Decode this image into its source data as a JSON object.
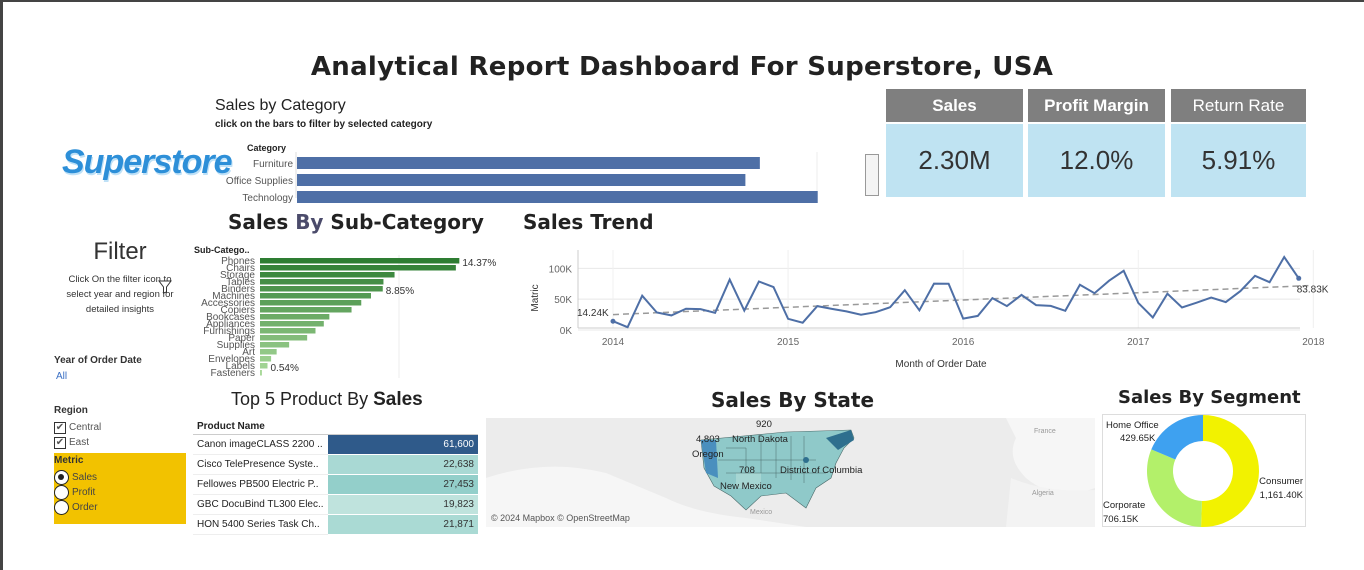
{
  "title": "Analytical Report Dashboard For Superstore, USA",
  "logo": "Superstore",
  "colors": {
    "bar_blue": "#4e6fa6",
    "kpi_head": "#7f7f7f",
    "kpi_bg": "#bfe3f2",
    "metric_bg": "#f2c200",
    "line": "#4e6fa6",
    "dark_green": "#2e7d32",
    "light_green": "#a9d99a",
    "consumer": "#f2f200",
    "corporate": "#b3f06a",
    "home_office": "#3ea1f0"
  },
  "category_panel": {
    "title": "Sales by Category",
    "subtitle": "click on the bars to filter by selected category",
    "axis_header": "Category",
    "categories": [
      "Furniture",
      "Office Supplies",
      "Technology"
    ],
    "values": [
      480,
      465,
      540
    ]
  },
  "kpis": [
    {
      "label": "Sales",
      "value": "2.30M"
    },
    {
      "label": "Profit Margin",
      "value": "12.0%"
    },
    {
      "label": "Return Rate",
      "value": "5.91%"
    }
  ],
  "filter": {
    "title": "Filter",
    "hint": "Click On the filter icon to select year and region for detailed insights",
    "filter_icon": "funnel-icon",
    "year_label": "Year of Order Date",
    "year_value": "All",
    "region_label": "Region",
    "regions": [
      {
        "label": "Central",
        "checked": true
      },
      {
        "label": "East",
        "checked": true
      }
    ],
    "metric_label": "Metric",
    "metrics": [
      {
        "label": "Sales",
        "selected": true
      },
      {
        "label": "Profit",
        "selected": false
      },
      {
        "label": "Order",
        "selected": false
      }
    ]
  },
  "subcategory": {
    "title_a": "Sales ",
    "title_b": "By",
    "title_c": " Sub-Category",
    "axis_header": "Sub-Catego..",
    "labels": [
      "Phones",
      "Chairs",
      "Storage",
      "Tables",
      "Binders",
      "Machines",
      "Accessories",
      "Copiers",
      "Bookcases",
      "Appliances",
      "Furnishings",
      "Paper",
      "Supplies",
      "Art",
      "Envelopes",
      "Labels",
      "Fasteners"
    ],
    "values": [
      14.37,
      14.12,
      9.7,
      8.9,
      8.85,
      8.0,
      7.3,
      6.6,
      5.0,
      4.6,
      4.0,
      3.4,
      2.1,
      1.2,
      0.8,
      0.54,
      0.14
    ],
    "annotations": {
      "0": "14.37%",
      "4": "8.85%",
      "15": "0.54%"
    }
  },
  "trend": {
    "title": "Sales Trend",
    "ylabel": "Matric",
    "xlabel": "Month of Order Date",
    "yticks": [
      "0K",
      "50K",
      "100K"
    ],
    "xticks": [
      "2014",
      "2015",
      "2016",
      "2017",
      "2018"
    ],
    "first_label": "14.24K",
    "last_label": "83.83K"
  },
  "chart_data": {
    "type": "line",
    "title": "Sales Trend",
    "xlabel": "Month of Order Date",
    "ylabel": "Matric",
    "ylim": [
      0,
      120
    ],
    "unit": "K",
    "x_start": "2014-01",
    "x": [
      "2014-01",
      "2014-02",
      "2014-03",
      "2014-04",
      "2014-05",
      "2014-06",
      "2014-07",
      "2014-08",
      "2014-09",
      "2014-10",
      "2014-11",
      "2014-12",
      "2015-01",
      "2015-02",
      "2015-03",
      "2015-04",
      "2015-05",
      "2015-06",
      "2015-07",
      "2015-08",
      "2015-09",
      "2015-10",
      "2015-11",
      "2015-12",
      "2016-01",
      "2016-02",
      "2016-03",
      "2016-04",
      "2016-05",
      "2016-06",
      "2016-07",
      "2016-08",
      "2016-09",
      "2016-10",
      "2016-11",
      "2016-12",
      "2017-01",
      "2017-02",
      "2017-03",
      "2017-04",
      "2017-05",
      "2017-06",
      "2017-07",
      "2017-08",
      "2017-09",
      "2017-10",
      "2017-11",
      "2017-12"
    ],
    "values": [
      14.24,
      4.5,
      55.7,
      28.3,
      23.6,
      34.6,
      33.9,
      27.9,
      81.8,
      31.5,
      78.6,
      69.5,
      18.2,
      11.9,
      38.7,
      34.2,
      30.1,
      24.8,
      28.8,
      36.9,
      64.6,
      31.9,
      75.2,
      74.9,
      18.5,
      22.9,
      51.7,
      38.8,
      56.9,
      40.3,
      39.1,
      31.1,
      73.4,
      59.7,
      80.0,
      96.0,
      43.9,
      20.3,
      58.9,
      36.5,
      44.3,
      52.5,
      45.3,
      63.1,
      87.9,
      77.5,
      118.4,
      83.83
    ],
    "trend_start": 25,
    "trend_end": 72
  },
  "top5": {
    "title_a": "Top 5 Product By ",
    "title_b": "Sales",
    "header": "Product Name",
    "rows": [
      {
        "name": "Canon imageCLASS 2200 ..",
        "value": "61,600",
        "shade": "#2f5a8a"
      },
      {
        "name": "Cisco TelePresence Syste..",
        "value": "22,638",
        "shade": "#a9d9d4"
      },
      {
        "name": "Fellowes PB500 Electric P..",
        "value": "27,453",
        "shade": "#93cfca"
      },
      {
        "name": "GBC DocuBind TL300 Elec..",
        "value": "19,823",
        "shade": "#bfe3dd"
      },
      {
        "name": "HON 5400 Series Task Ch..",
        "value": "21,871",
        "shade": "#aadad4"
      }
    ]
  },
  "map": {
    "title": "Sales By State",
    "labels": [
      "920",
      "4,803",
      "North Dakota",
      "Oregon",
      "708",
      "District of Columbia",
      "New Mexico",
      "Mexico",
      "France",
      "Algeria"
    ],
    "attribution": "© 2024 Mapbox © OpenStreetMap"
  },
  "segment": {
    "title": "Sales By Segment",
    "slices": [
      {
        "name": "Consumer",
        "value": "1,161.40K",
        "raw": 1161.4
      },
      {
        "name": "Corporate",
        "value": "706.15K",
        "raw": 706.15
      },
      {
        "name": "Home Office",
        "value": "429.65K",
        "raw": 429.65
      }
    ]
  }
}
